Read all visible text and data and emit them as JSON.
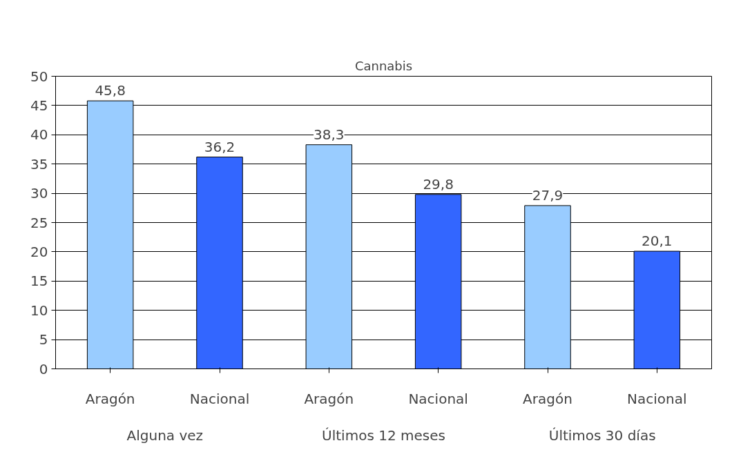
{
  "chart_data": {
    "type": "bar",
    "title": "Cannabis",
    "categories": [
      "Aragón",
      "Nacional",
      "Aragón",
      "Nacional",
      "Aragón",
      "Nacional"
    ],
    "values": [
      45.8,
      36.2,
      38.3,
      29.8,
      27.9,
      20.1
    ],
    "colors": [
      "#99ccff",
      "#3366ff",
      "#99ccff",
      "#3366ff",
      "#99ccff",
      "#3366ff"
    ],
    "value_labels": [
      "45,8",
      "36,2",
      "38,3",
      "29,8",
      "27,9",
      "20,1"
    ],
    "annotations": [
      "Alguna vez",
      "Últimos 12 meses",
      "Últimos 30 días"
    ],
    "ylim": [
      0,
      50
    ],
    "yticks": [
      0,
      5,
      10,
      15,
      20,
      25,
      30,
      35,
      40,
      45,
      50
    ],
    "grid": "y"
  }
}
